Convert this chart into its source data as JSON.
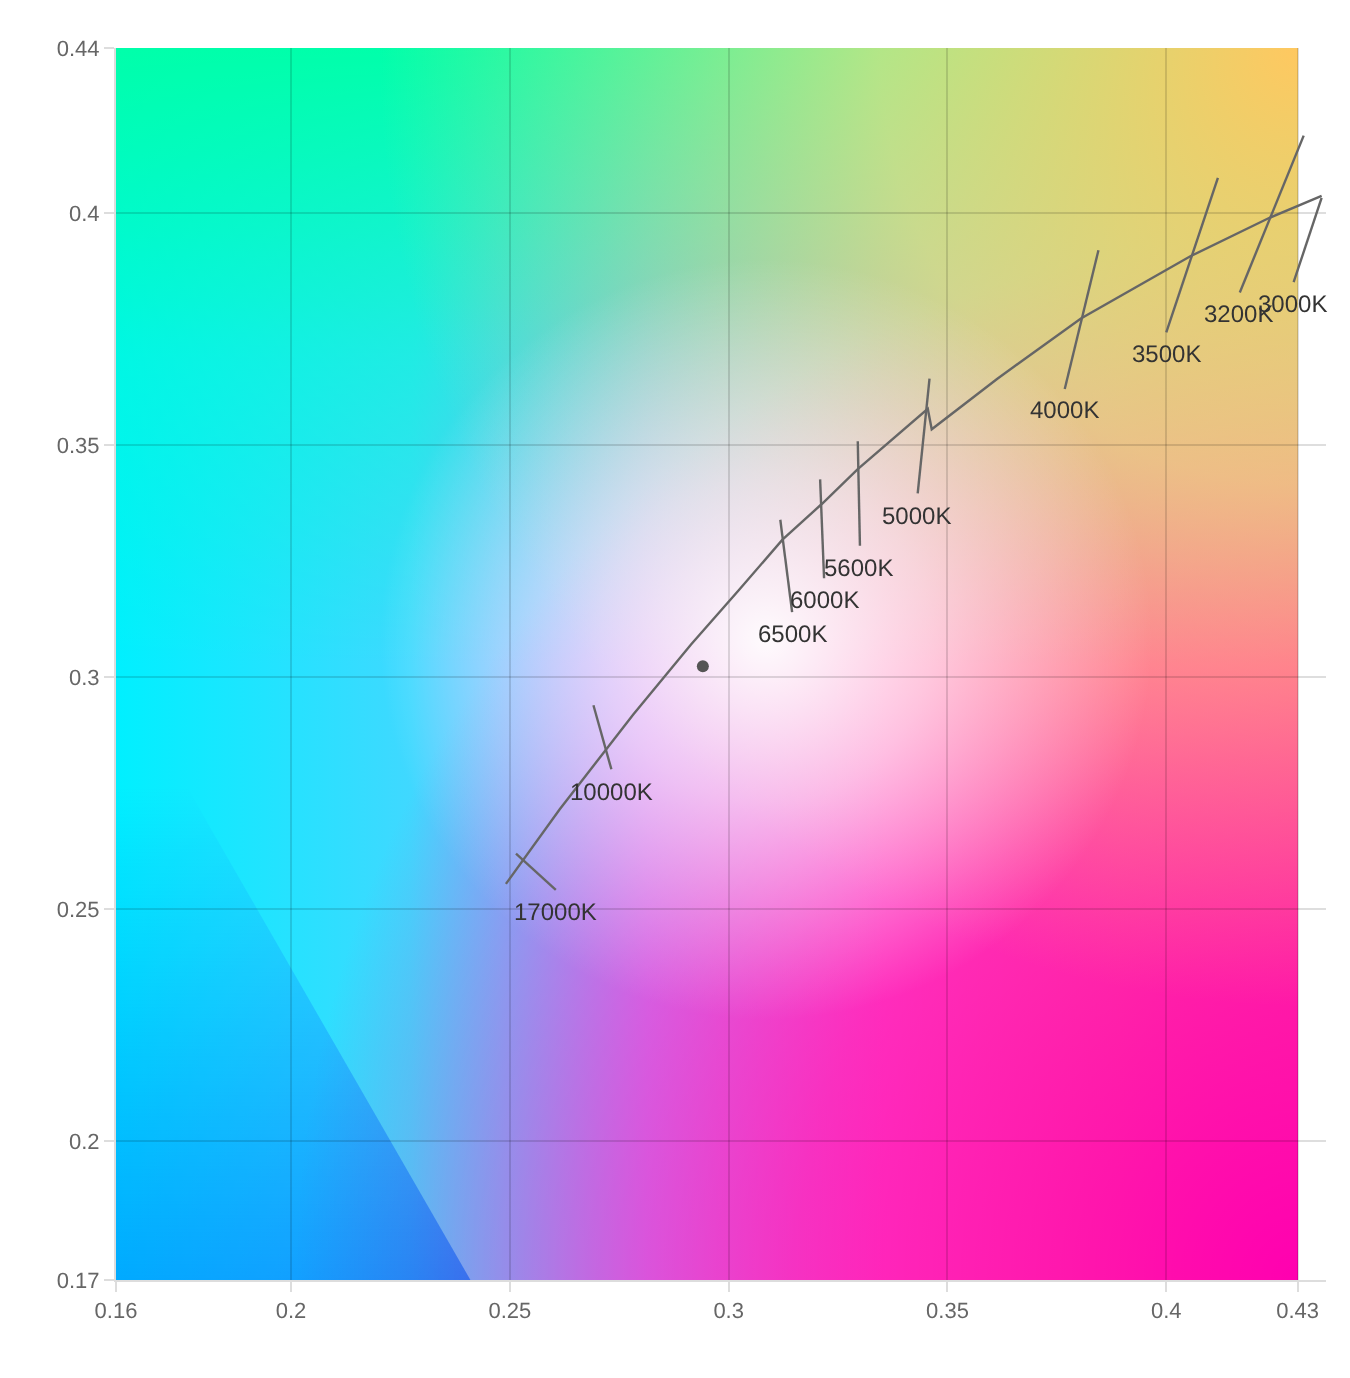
{
  "chart_data": {
    "type": "line",
    "xlim": [
      0.16,
      0.4365
    ],
    "ylim": [
      0.17,
      0.4356
    ],
    "xticks": [
      0.16,
      0.2,
      0.25,
      0.3,
      0.35,
      0.4,
      0.43
    ],
    "yticks": [
      0.17,
      0.2,
      0.25,
      0.3,
      0.35,
      0.4,
      {
        "value": 0.4356,
        "label": "0.44"
      }
    ],
    "grid": true,
    "line_style": "solid",
    "series": [
      {
        "marker": "none",
        "color": "#666666",
        "x": [
          0.2491,
          0.2614,
          0.2782,
          0.2914,
          0.3023,
          0.3123,
          0.3214,
          0.3295,
          0.3455,
          0.3464,
          0.3614,
          0.3805,
          0.4055,
          0.4236,
          0.4355
        ],
        "values": [
          0.2554,
          0.2715,
          0.2919,
          0.307,
          0.3187,
          0.3296,
          0.3374,
          0.3448,
          0.3578,
          0.3534,
          0.3643,
          0.3773,
          0.3907,
          0.399,
          0.4037
        ]
      },
      {
        "marker": "none",
        "color": "#666666",
        "x": [
          0.2514,
          0.2605
        ],
        "values": [
          0.2619,
          0.2541
        ]
      },
      {
        "marker": "none",
        "color": "#666666",
        "x": [
          0.2691,
          0.2732
        ],
        "values": [
          0.2939,
          0.2801
        ]
      },
      {
        "marker": "none",
        "color": "#666666",
        "x": [
          0.3118,
          0.3145
        ],
        "values": [
          0.3339,
          0.314
        ]
      },
      {
        "marker": "none",
        "color": "#666666",
        "x": [
          0.3209,
          0.3218
        ],
        "values": [
          0.3426,
          0.3213
        ]
      },
      {
        "marker": "none",
        "color": "#666666",
        "x": [
          0.3295,
          0.33
        ],
        "values": [
          0.3508,
          0.3283
        ]
      },
      {
        "marker": "none",
        "color": "#666666",
        "x": [
          0.3459,
          0.3432
        ],
        "values": [
          0.3643,
          0.3396
        ]
      },
      {
        "marker": "none",
        "color": "#666666",
        "x": [
          0.3845,
          0.3768
        ],
        "values": [
          0.392,
          0.3621
        ]
      },
      {
        "marker": "none",
        "color": "#666666",
        "x": [
          0.4118,
          0.4
        ],
        "values": [
          0.4076,
          0.3743
        ]
      },
      {
        "marker": "none",
        "color": "#666666",
        "x": [
          0.4314,
          0.4168
        ],
        "values": [
          0.4167,
          0.3829
        ]
      },
      {
        "marker": "none",
        "color": "#666666",
        "x": [
          0.4355,
          0.4291
        ],
        "values": [
          0.4033,
          0.3851
        ]
      },
      {
        "type": "scatter",
        "marker": "circle",
        "color": "#555555",
        "x": [
          0.2941
        ],
        "values": [
          0.3023
        ]
      }
    ],
    "annotations": [
      {
        "text": "17000K",
        "x": 0.2605,
        "y": 0.2541
      },
      {
        "text": "10000K",
        "x": 0.2732,
        "y": 0.2801
      },
      {
        "text": "6500K",
        "x": 0.3145,
        "y": 0.314
      },
      {
        "text": "6000K",
        "x": 0.3218,
        "y": 0.3213
      },
      {
        "text": "5600K",
        "x": 0.33,
        "y": 0.3283
      },
      {
        "text": "5000K",
        "x": 0.3432,
        "y": 0.3396
      },
      {
        "text": "4000K",
        "x": 0.3768,
        "y": 0.3621
      },
      {
        "text": "3500K",
        "x": 0.4,
        "y": 0.3743
      },
      {
        "text": "3200K",
        "x": 0.4168,
        "y": 0.3829
      },
      {
        "text": "3000K",
        "x": 0.4291,
        "y": 0.3851
      }
    ]
  }
}
